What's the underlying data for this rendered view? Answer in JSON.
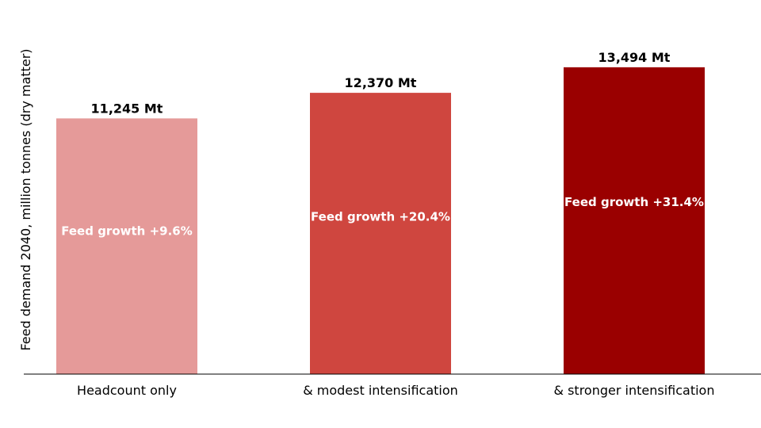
{
  "chart_data": {
    "type": "bar",
    "categories": [
      "Headcount only",
      "& modest intensification",
      "& stronger intensification"
    ],
    "values": [
      11245,
      12370,
      13494
    ],
    "value_labels": [
      "11,245 Mt",
      "12,370 Mt",
      "13,494 Mt"
    ],
    "inner_labels": [
      "Feed growth +9.6%",
      "Feed growth +20.4%",
      "Feed growth +31.4%"
    ],
    "bar_colors": [
      "#e59a99",
      "#cf463f",
      "#9a0000"
    ],
    "ylabel": "Feed demand 2040, million tonnes (dry matter)",
    "xlabel": "",
    "ylim": [
      0,
      14500
    ],
    "grid": false,
    "legend": "none"
  }
}
